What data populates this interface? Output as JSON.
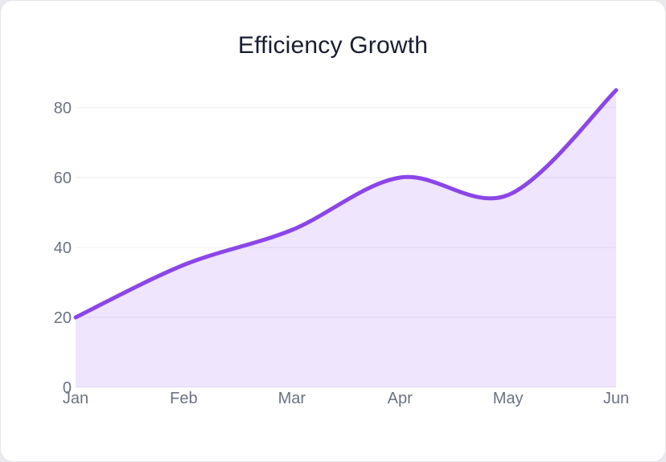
{
  "chart_data": {
    "type": "area",
    "title": "Efficiency Growth",
    "categories": [
      "Jan",
      "Feb",
      "Mar",
      "Apr",
      "May",
      "Jun"
    ],
    "values": [
      20,
      35,
      45,
      60,
      55,
      85
    ],
    "xlabel": "",
    "ylabel": "",
    "ylim": [
      0,
      90
    ],
    "yticks": [
      0,
      20,
      40,
      60,
      80
    ],
    "grid": true,
    "legend": false,
    "curve": "smooth",
    "line_color": "#8b46e8",
    "line_width": 5,
    "fill_color": "rgba(139,70,232,0.14)",
    "grid_color": "#ececf1",
    "axis_label_color": "#6b7280",
    "title_color": "#181d2f",
    "card_background": "#ffffff",
    "page_background": "#e9e9ee"
  }
}
